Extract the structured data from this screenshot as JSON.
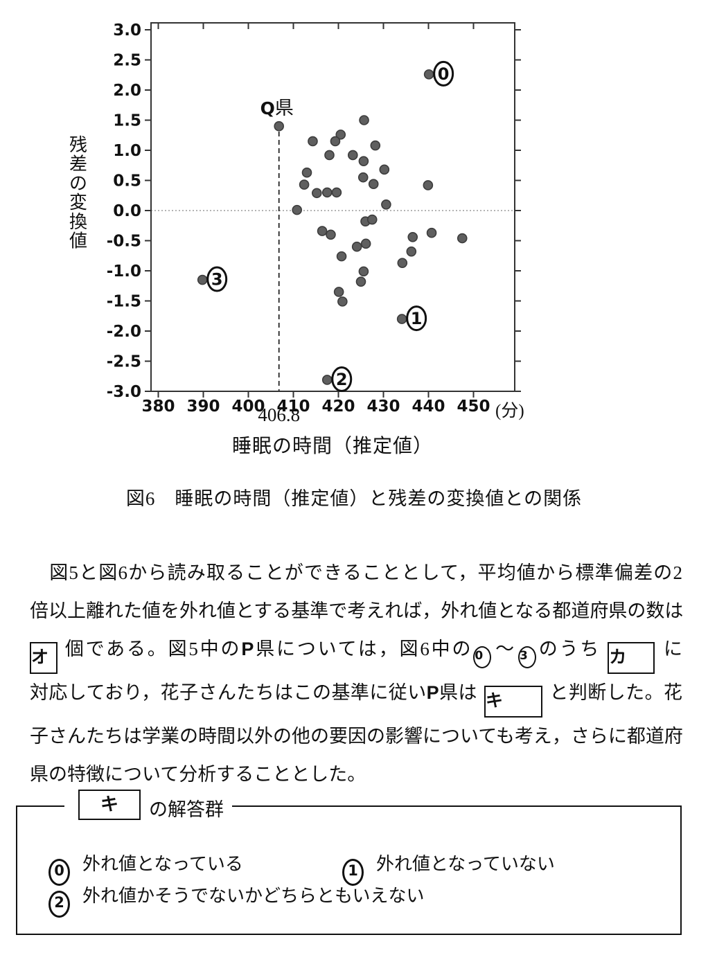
{
  "caption": {
    "text": "図6　睡眠の時間（推定値）と残差の変換値との関係"
  },
  "paragraph": {
    "line1": "　図5と図6から読み取ることができることとして，平均値から標準偏差の2",
    "line2": "倍以上離れた値を外れ値とする基準で考えれば，外れ値となる都道府県の数は",
    "line3": {
      "blank_o": "オ",
      "seg1": "個である。図5中の",
      "p": "P",
      "seg2": "県については，図6中の",
      "c0": "0",
      "tilde": "～",
      "c3": "3",
      "seg3": "のうち",
      "blank_ka": "カ",
      "seg4": "に"
    },
    "line4": {
      "seg1": "対応しており，花子さんたちはこの基準に従い",
      "p": "P",
      "seg2": "県は",
      "blank_ki": "キ",
      "seg3": "と判断した。花"
    },
    "line5": "子さんたちは学業の時間以外の他の要因の影響についても考え，さらに都道府",
    "line6": "県の特徴について分析することとした。"
  },
  "answer_group": {
    "header_box": "キ",
    "header_suffix": "の解答群",
    "options": [
      {
        "num": "0",
        "label": "外れ値となっている"
      },
      {
        "num": "1",
        "label": "外れ値となっていない"
      },
      {
        "num": "2",
        "label": "外れ値かそうでないかどちらともいえない"
      }
    ]
  },
  "chart_data": {
    "type": "scatter",
    "xlabel": "睡眠の時間（推定値）",
    "ylabel": "残差の変換値",
    "x_unit": "(分)",
    "xlim": [
      378,
      459
    ],
    "ylim": [
      -3.0,
      3.0
    ],
    "grid": "zero-line-only",
    "x_ticks": [
      380,
      390,
      400,
      410,
      420,
      430,
      440,
      450
    ],
    "y_tick_labels": [
      "3.0",
      "2.5",
      "2.0",
      "1.5",
      "1.0",
      "0.5",
      "0.0",
      "-0.5",
      "-1.0",
      "-1.5",
      "-2.0",
      "-2.5",
      "-3.0"
    ],
    "zero_reference_line": 0.0,
    "dashed_vline": {
      "x": 406.8,
      "label": "406.8"
    },
    "points": [
      [
        425.7,
        1.5
      ],
      [
        420.5,
        1.26
      ],
      [
        419.3,
        1.15
      ],
      [
        414.3,
        1.15
      ],
      [
        418.0,
        0.92
      ],
      [
        423.2,
        0.92
      ],
      [
        428.2,
        1.08
      ],
      [
        425.6,
        0.82
      ],
      [
        413.0,
        0.63
      ],
      [
        430.2,
        0.68
      ],
      [
        425.5,
        0.55
      ],
      [
        412.4,
        0.43
      ],
      [
        427.8,
        0.44
      ],
      [
        415.2,
        0.29
      ],
      [
        417.5,
        0.3
      ],
      [
        419.6,
        0.3
      ],
      [
        430.6,
        0.1
      ],
      [
        410.8,
        0.01
      ],
      [
        426.0,
        -0.18
      ],
      [
        427.5,
        -0.15
      ],
      [
        439.9,
        0.42
      ],
      [
        416.4,
        -0.34
      ],
      [
        418.3,
        -0.4
      ],
      [
        424.1,
        -0.6
      ],
      [
        426.1,
        -0.55
      ],
      [
        420.7,
        -0.76
      ],
      [
        434.2,
        -0.87
      ],
      [
        425.6,
        -1.01
      ],
      [
        425.0,
        -1.18
      ],
      [
        420.1,
        -1.35
      ],
      [
        420.9,
        -1.51
      ],
      [
        436.5,
        -0.44
      ],
      [
        440.7,
        -0.37
      ],
      [
        447.5,
        -0.46
      ],
      [
        436.2,
        -0.68
      ]
    ],
    "labeled_points": [
      {
        "label": "Q県",
        "x": 406.8,
        "y": 1.4,
        "style": "text"
      },
      {
        "label": "0",
        "x": 440.1,
        "y": 2.26,
        "style": "circled"
      },
      {
        "label": "1",
        "x": 434.1,
        "y": -1.8,
        "style": "circled"
      },
      {
        "label": "2",
        "x": 417.5,
        "y": -2.81,
        "style": "circled"
      },
      {
        "label": "3",
        "x": 389.8,
        "y": -1.15,
        "style": "circled"
      }
    ],
    "point_color": "#5f5f5f"
  }
}
